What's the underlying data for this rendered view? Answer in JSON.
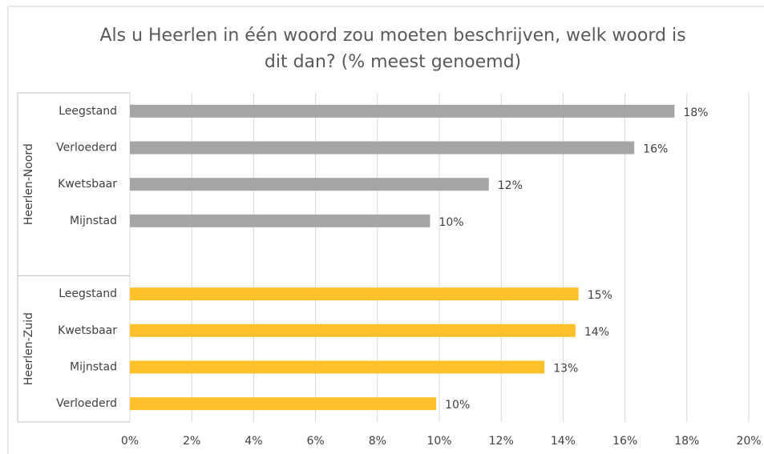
{
  "chart_data": {
    "type": "bar",
    "orientation": "horizontal",
    "title": "Als u Heerlen in één woord zou moeten beschrijven, welk woord is dit dan? (% meest genoemd)",
    "groups": [
      {
        "name": "Heerlen-Noord",
        "color": "#a5a5a5",
        "categories": [
          "Leegstand",
          "Verloederd",
          "Kwetsbaar",
          "Mijnstad"
        ],
        "values": [
          17.6,
          16.3,
          11.6,
          9.7
        ],
        "value_labels": [
          "18%",
          "16%",
          "12%",
          "10%"
        ]
      },
      {
        "name": "Heerlen-Zuid",
        "color": "#ffc12b",
        "categories": [
          "Leegstand",
          "Kwetsbaar",
          "Mijnstad",
          "Verloederd"
        ],
        "values": [
          14.5,
          14.4,
          13.4,
          9.9
        ],
        "value_labels": [
          "15%",
          "14%",
          "13%",
          "10%"
        ]
      }
    ],
    "xlim": [
      0,
      20
    ],
    "xticks": [
      {
        "value": 0,
        "label": "0%"
      },
      {
        "value": 2,
        "label": "2%"
      },
      {
        "value": 4,
        "label": "4%"
      },
      {
        "value": 6,
        "label": "6%"
      },
      {
        "value": 8,
        "label": "8%"
      },
      {
        "value": 10,
        "label": "10%"
      },
      {
        "value": 12,
        "label": "12%"
      },
      {
        "value": 14,
        "label": "14%"
      },
      {
        "value": 16,
        "label": "16%"
      },
      {
        "value": 18,
        "label": "18%"
      },
      {
        "value": 20,
        "label": "20%"
      }
    ],
    "grid": true
  }
}
